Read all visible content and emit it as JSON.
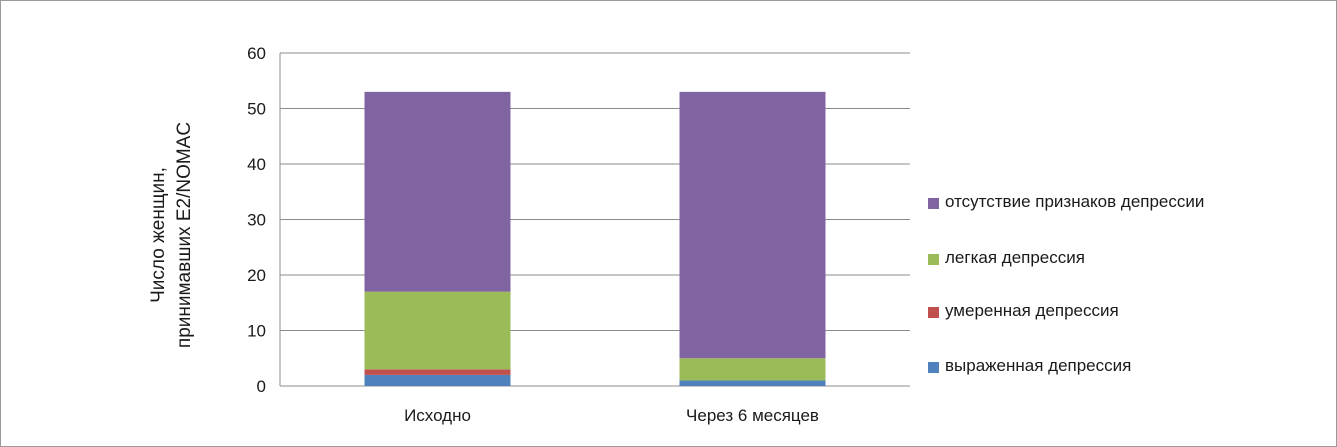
{
  "chart_data": {
    "type": "bar",
    "stacked": true,
    "categories": [
      "Исходно",
      "Через 6 месяцев"
    ],
    "ylabel": "Число женщин, принимавших E2/NOMAC",
    "ylim": [
      0,
      60
    ],
    "yticks": [
      0,
      10,
      20,
      30,
      40,
      50,
      60
    ],
    "grid": true,
    "legend": "right",
    "series": [
      {
        "name": "выраженная депрессия",
        "color": "#4f81bd",
        "values": [
          2,
          1
        ]
      },
      {
        "name": "умеренная депрессия",
        "color": "#c0504d",
        "values": [
          1,
          0
        ]
      },
      {
        "name": "легкая депрессия",
        "color": "#9bbb59",
        "values": [
          14,
          4
        ]
      },
      {
        "name": "отсутствие признаков депрессии",
        "color": "#8064a2",
        "values": [
          36,
          48
        ]
      }
    ]
  }
}
